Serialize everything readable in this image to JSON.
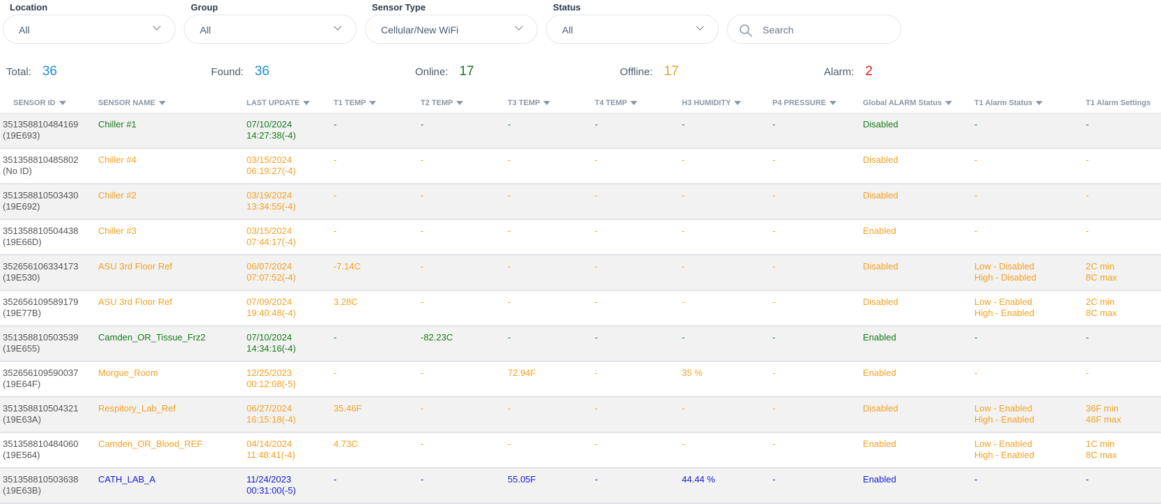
{
  "colors": {
    "accent_blue": "#1d8fd6",
    "online_green": "#157a18",
    "offline_orange": "#f5a020",
    "alarm_red": "#e01b1b",
    "row_green": "#157a18",
    "row_orange": "#f5a020",
    "row_blue": "#1818d0"
  },
  "filters": {
    "location": {
      "label": "Location",
      "value": "All"
    },
    "group": {
      "label": "Group",
      "value": "All"
    },
    "sensor_type": {
      "label": "Sensor Type",
      "value": "Cellular/New WiFi"
    },
    "status": {
      "label": "Status",
      "value": "All"
    },
    "search": {
      "placeholder": "Search",
      "icon": "search-icon"
    }
  },
  "summary": {
    "total_label": "Total:",
    "total": "36",
    "found_label": "Found:",
    "found": "36",
    "online_label": "Online:",
    "online": "17",
    "offline_label": "Offline:",
    "offline": "17",
    "alarm_label": "Alarm:",
    "alarm": "2"
  },
  "table": {
    "headers": [
      "SENSOR ID",
      "SENSOR NAME",
      "LAST UPDATE",
      "T1 TEMP",
      "T2 TEMP",
      "T3 TEMP",
      "T4 TEMP",
      "H3 HUMIDITY",
      "P4 PRESSURE",
      "Global ALARM Status",
      "T1 Alarm Status",
      "T1 Alarm Settings"
    ],
    "rows": [
      {
        "status": "online",
        "id": "351358810484169",
        "code": "(19E693)",
        "name": "Chiller #1",
        "date": "07/10/2024",
        "time": "14:27:38(-4)",
        "t1": "-",
        "t2": "-",
        "t3": "-",
        "t4": "-",
        "h3": "-",
        "p4": "-",
        "global_alarm": "Disabled",
        "t1_status_1": "-",
        "t1_status_2": "",
        "t1_settings_1": "-",
        "t1_settings_2": ""
      },
      {
        "status": "offline",
        "id": "351358810485802",
        "code": "(No ID)",
        "name": "Chiller #4",
        "date": "03/15/2024",
        "time": "06:19:27(-4)",
        "t1": "-",
        "t2": "-",
        "t3": "-",
        "t4": "-",
        "h3": "-",
        "p4": "-",
        "global_alarm": "Disabled",
        "t1_status_1": "-",
        "t1_status_2": "",
        "t1_settings_1": "-",
        "t1_settings_2": ""
      },
      {
        "status": "offline",
        "id": "351358810503430",
        "code": "(19E692)",
        "name": "Chiller #2",
        "date": "03/19/2024",
        "time": "13:34:55(-4)",
        "t1": "-",
        "t2": "-",
        "t3": "-",
        "t4": "-",
        "h3": "-",
        "p4": "-",
        "global_alarm": "Disabled",
        "t1_status_1": "-",
        "t1_status_2": "",
        "t1_settings_1": "-",
        "t1_settings_2": ""
      },
      {
        "status": "offline",
        "id": "351358810504438",
        "code": "(19E66D)",
        "name": "Chiller #3",
        "date": "03/15/2024",
        "time": "07:44:17(-4)",
        "t1": "-",
        "t2": "-",
        "t3": "-",
        "t4": "-",
        "h3": "-",
        "p4": "-",
        "global_alarm": "Enabled",
        "t1_status_1": "-",
        "t1_status_2": "",
        "t1_settings_1": "-",
        "t1_settings_2": ""
      },
      {
        "status": "offline",
        "id": "352656106334173",
        "code": "(19E530)",
        "name": "ASU 3rd Floor Ref",
        "date": "06/07/2024",
        "time": "07:07:52(-4)",
        "t1": "-7.14C",
        "t2": "-",
        "t3": "-",
        "t4": "-",
        "h3": "-",
        "p4": "-",
        "global_alarm": "Disabled",
        "t1_status_1": "Low - Disabled",
        "t1_status_2": "High - Disabled",
        "t1_settings_1": "2C min",
        "t1_settings_2": "8C max"
      },
      {
        "status": "offline",
        "id": "352656109589179",
        "code": "(19E77B)",
        "name": "ASU 3rd Floor Ref",
        "date": "07/09/2024",
        "time": "19:40:48(-4)",
        "t1": "3.28C",
        "t2": "-",
        "t3": "-",
        "t4": "-",
        "h3": "-",
        "p4": "-",
        "global_alarm": "Disabled",
        "t1_status_1": "Low - Enabled",
        "t1_status_2": "High - Enabled",
        "t1_settings_1": "2C min",
        "t1_settings_2": "8C max"
      },
      {
        "status": "online",
        "id": "351358810503539",
        "code": "(19E655)",
        "name": "Camden_OR_Tissue_Frz2",
        "date": "07/10/2024",
        "time": "14:34:16(-4)",
        "t1": "-",
        "t2": "-82.23C",
        "t3": "-",
        "t4": "-",
        "h3": "-",
        "p4": "-",
        "global_alarm": "Enabled",
        "t1_status_1": "-",
        "t1_status_2": "",
        "t1_settings_1": "-",
        "t1_settings_2": ""
      },
      {
        "status": "offline",
        "id": "352656109590037",
        "code": "(19E64F)",
        "name": "Morgue_Room",
        "date": "12/25/2023",
        "time": "00:12:08(-5)",
        "t1": "-",
        "t2": "-",
        "t3": "72.94F",
        "t4": "-",
        "h3": "35 %",
        "p4": "-",
        "global_alarm": "Enabled",
        "t1_status_1": "-",
        "t1_status_2": "",
        "t1_settings_1": "-",
        "t1_settings_2": ""
      },
      {
        "status": "offline",
        "id": "351358810504321",
        "code": "(19E63A)",
        "name": "Respitory_Lab_Ref",
        "date": "06/27/2024",
        "time": "16:15:18(-4)",
        "t1": "35.46F",
        "t2": "-",
        "t3": "-",
        "t4": "-",
        "h3": "-",
        "p4": "-",
        "global_alarm": "Disabled",
        "t1_status_1": "Low - Enabled",
        "t1_status_2": "High - Enabled",
        "t1_settings_1": "36F min",
        "t1_settings_2": "46F max"
      },
      {
        "status": "offline",
        "id": "351358810484060",
        "code": "(19E564)",
        "name": "Camden_OR_Blood_REF",
        "date": "04/14/2024",
        "time": "11:48:41(-4)",
        "t1": "4.73C",
        "t2": "-",
        "t3": "-",
        "t4": "-",
        "h3": "-",
        "p4": "-",
        "global_alarm": "Enabled",
        "t1_status_1": "Low - Enabled",
        "t1_status_2": "High - Enabled",
        "t1_settings_1": "1C min",
        "t1_settings_2": "8C max"
      },
      {
        "status": "alarm",
        "id": "351358810503638",
        "code": "(19E63B)",
        "name": "CATH_LAB_A",
        "date": "11/24/2023",
        "time": "00:31:00(-5)",
        "t1": "-",
        "t2": "-",
        "t3": "55.05F",
        "t4": "-",
        "h3": "44.44 %",
        "p4": "-",
        "global_alarm": "Enabled",
        "t1_status_1": "-",
        "t1_status_2": "",
        "t1_settings_1": "-",
        "t1_settings_2": ""
      }
    ]
  }
}
